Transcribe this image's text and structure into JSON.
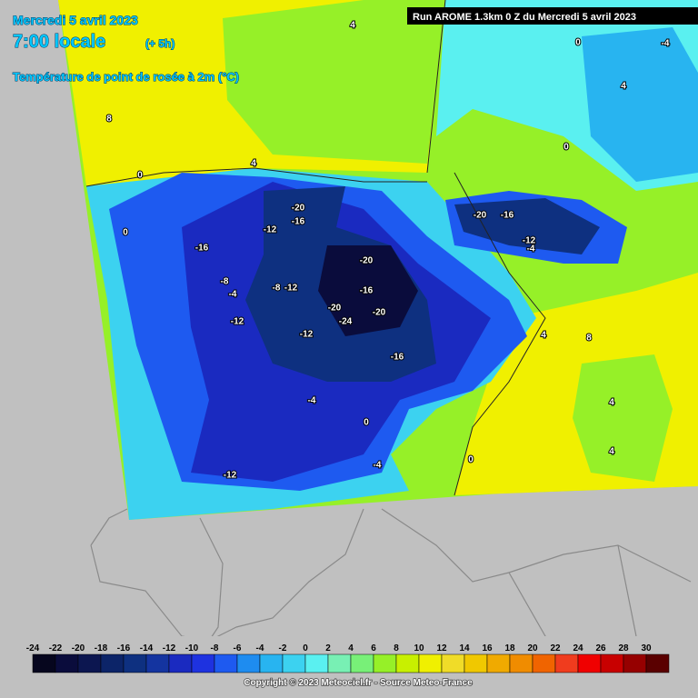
{
  "header": {
    "date": "Mercredi 5 avril 2023",
    "time": "7:00 locale",
    "offset": "(+ 5h)",
    "parameter": "Température de point de rosée à 2m (°C)",
    "run": "Run AROME 1.3km 0 Z du Mercredi 5 avril 2023"
  },
  "map": {
    "contour_labels": [
      -20,
      -16,
      -12,
      -16,
      -8,
      -8,
      -12,
      -4,
      -20,
      -16,
      -20,
      -20,
      -24,
      -12,
      -12,
      -16,
      -20,
      -16,
      -12,
      -4,
      -4,
      0,
      -4,
      -12,
      0,
      4,
      8,
      4,
      4,
      0,
      -4,
      4,
      4,
      0,
      8,
      4,
      0,
      0
    ]
  },
  "legend": {
    "ticks": [
      -24,
      -22,
      -20,
      -18,
      -16,
      -14,
      -12,
      -10,
      -8,
      -6,
      -4,
      -2,
      0,
      2,
      4,
      6,
      8,
      10,
      12,
      14,
      16,
      18,
      20,
      22,
      24,
      26,
      28,
      30
    ],
    "colors": [
      "#06061e",
      "#0a0c3c",
      "#0c1650",
      "#0c2468",
      "#0e3080",
      "#1434a0",
      "#1a2ac0",
      "#1e32e0",
      "#1e5af0",
      "#1e8cf0",
      "#28b4f0",
      "#3cd2f0",
      "#5af0f0",
      "#78f0b4",
      "#78f078",
      "#96f028",
      "#c8f000",
      "#f0f000",
      "#f0dc28",
      "#f0c800",
      "#f0aa00",
      "#f08c00",
      "#f06400",
      "#f03c1e",
      "#f00000",
      "#c80000",
      "#960000",
      "#5a0000"
    ]
  },
  "footer": {
    "copyright": "Copyright © 2023 Meteociel.fr - Source Meteo-France"
  }
}
